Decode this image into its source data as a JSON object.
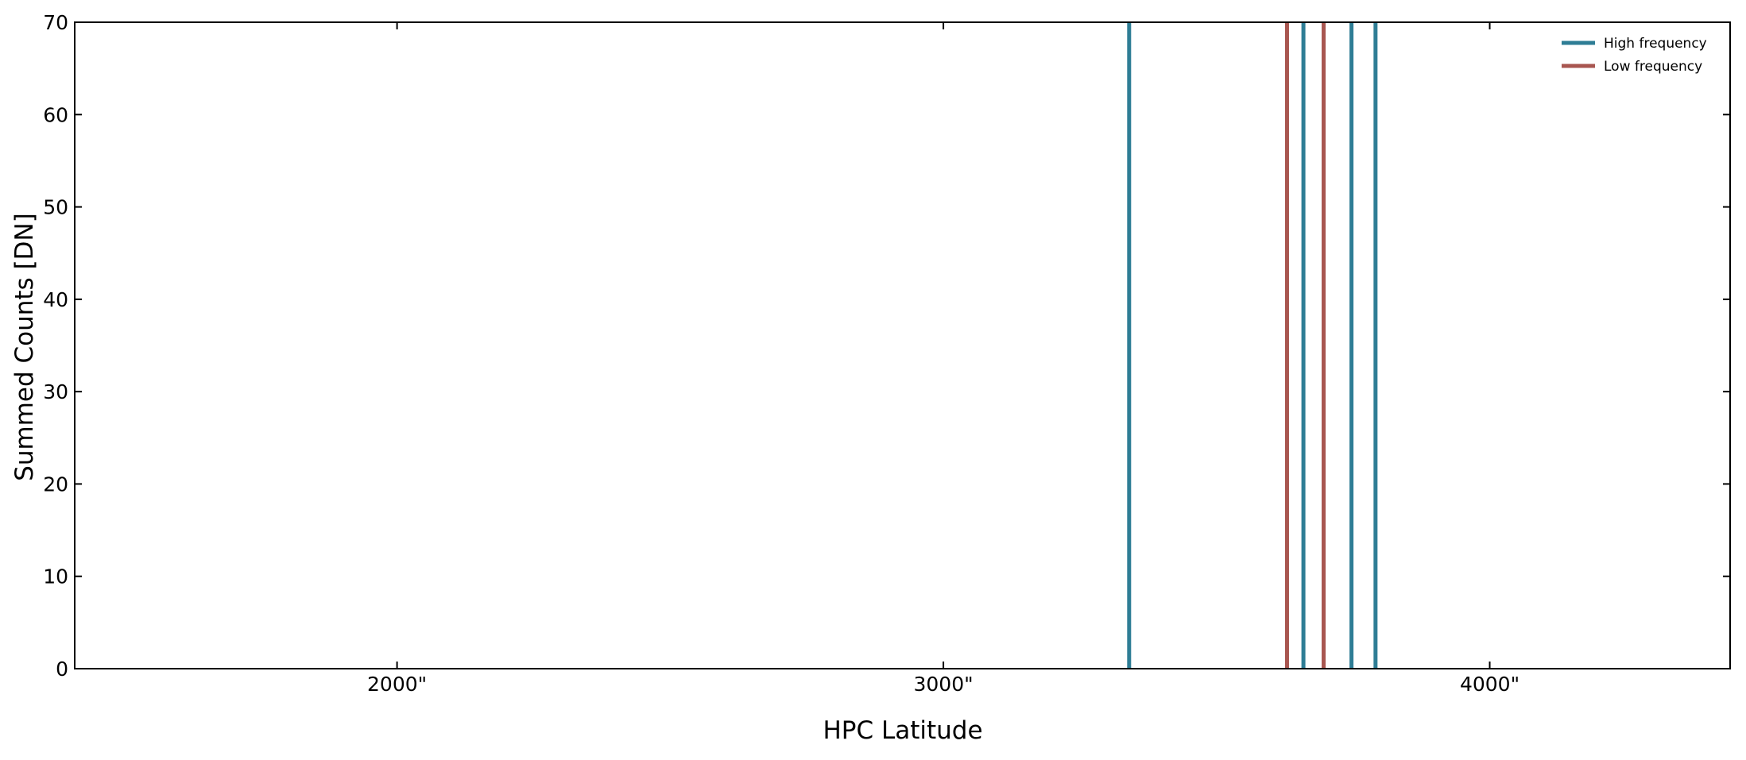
{
  "chart_data": {
    "type": "line",
    "xlabel": "HPC Latitude",
    "ylabel": "Summed Counts [DN]",
    "xlim": [
      1410,
      4440
    ],
    "ylim": [
      0,
      70
    ],
    "x_ticks": [
      {
        "value": 2000,
        "label": "2000\""
      },
      {
        "value": 3000,
        "label": "3000\""
      },
      {
        "value": 4000,
        "label": "4000\""
      }
    ],
    "y_ticks": [
      {
        "value": 0,
        "label": "0"
      },
      {
        "value": 10,
        "label": "10"
      },
      {
        "value": 20,
        "label": "20"
      },
      {
        "value": 30,
        "label": "30"
      },
      {
        "value": 40,
        "label": "40"
      },
      {
        "value": 50,
        "label": "50"
      },
      {
        "value": 60,
        "label": "60"
      },
      {
        "value": 70,
        "label": "70"
      }
    ],
    "grid": false,
    "legend_position": "top-right",
    "series": [
      {
        "name": "High frequency",
        "color": "#2e7d95",
        "x": [
          3340,
          3659,
          3747,
          3791
        ]
      },
      {
        "name": "Low frequency",
        "color": "#a85650",
        "x": [
          3629,
          3696
        ]
      }
    ]
  }
}
